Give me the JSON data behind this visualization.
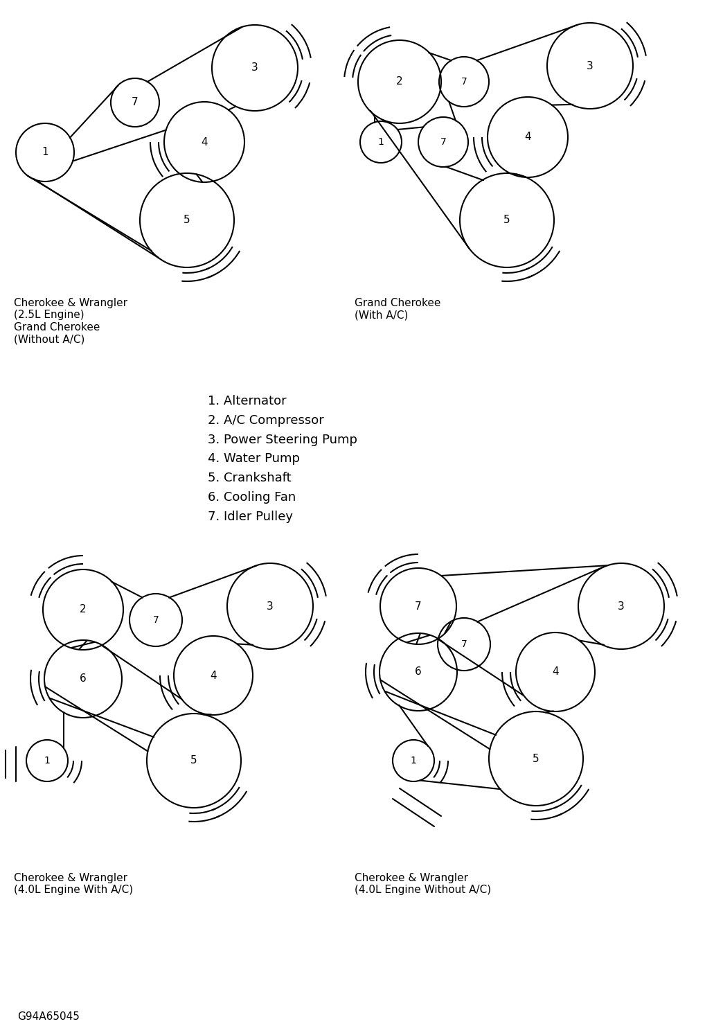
{
  "bg_color": "#ffffff",
  "legend": [
    "1. Alternator",
    "2. A/C Compressor",
    "3. Power Steering Pump",
    "4. Water Pump",
    "5. Crankshaft",
    "6. Cooling Fan",
    "7. Idler Pulley"
  ],
  "footer": "G94A65045",
  "label1": "Cherokee & Wrangler\n(2.5L Engine)\nGrand Cherokee\n(Without A/C)",
  "label2": "Grand Cherokee\n(With A/C)",
  "label3": "Cherokee & Wrangler\n(4.0L Engine With A/C)",
  "label4": "Cherokee & Wrangler\n(4.0L Engine Without A/C)"
}
